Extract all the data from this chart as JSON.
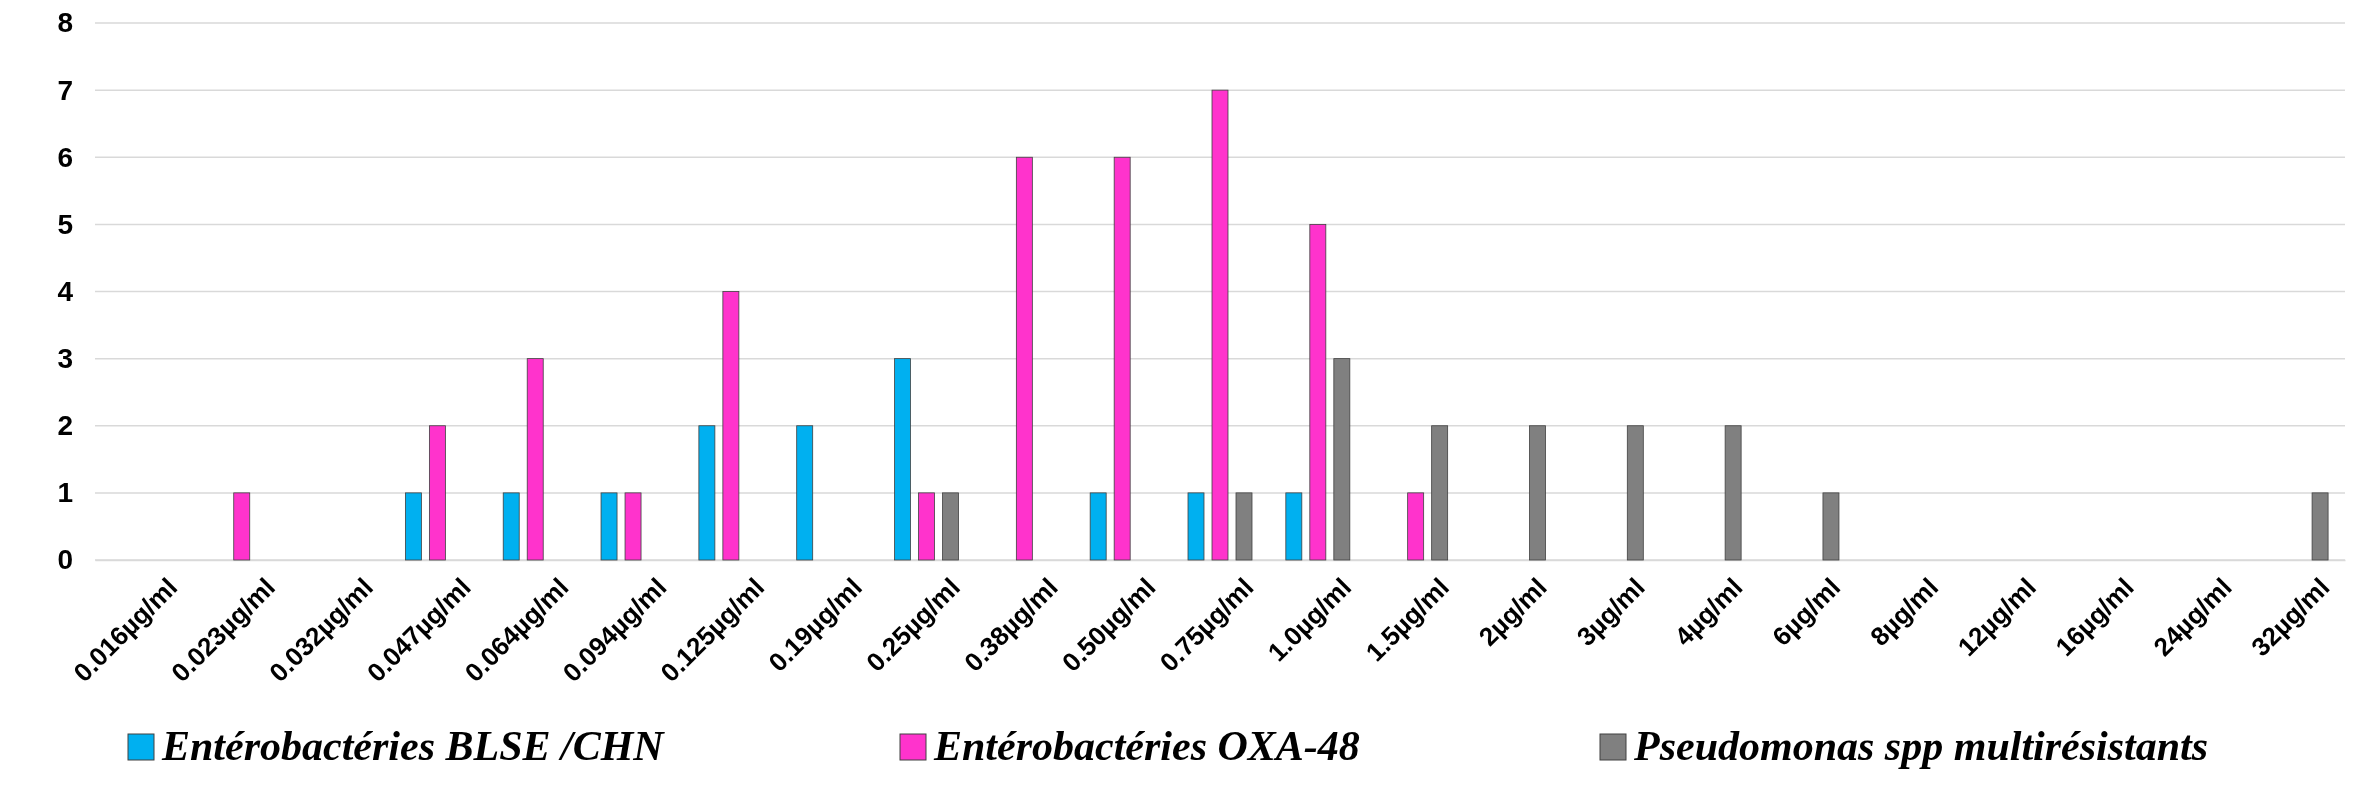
{
  "chart_data": {
    "type": "bar",
    "categories": [
      "0.016µg/ml",
      "0.023µg/ml",
      "0.032µg/ml",
      "0.047µg/ml",
      "0.064µg/ml",
      "0.094µg/ml",
      "0.125µg/ml",
      "0.19µg/ml",
      "0.25µg/ml",
      "0.38µg/ml",
      "0.50µg/ml",
      "0.75µg/ml",
      "1.0µg/ml",
      "1.5µg/ml",
      "2µg/ml",
      "3µg/ml",
      "4µg/ml",
      "6µg/ml",
      "8µg/ml",
      "12µg/ml",
      "16µg/ml",
      "24µg/ml",
      "32µg/ml"
    ],
    "series": [
      {
        "name": "Entérobactéries BLSE /CHN",
        "color": "#00b0f0",
        "values": [
          0,
          0,
          0,
          1,
          1,
          1,
          2,
          2,
          3,
          0,
          1,
          1,
          1,
          0,
          0,
          0,
          0,
          0,
          0,
          0,
          0,
          0,
          0
        ]
      },
      {
        "name": "Entérobactéries OXA-48",
        "color": "#ff33cc",
        "values": [
          0,
          1,
          0,
          2,
          3,
          1,
          4,
          0,
          1,
          6,
          6,
          7,
          5,
          1,
          0,
          0,
          0,
          0,
          0,
          0,
          0,
          0,
          0
        ]
      },
      {
        "name": "Pseudomonas spp multirésistants",
        "color": "#808080",
        "values": [
          0,
          0,
          0,
          0,
          0,
          0,
          0,
          0,
          1,
          0,
          0,
          1,
          3,
          2,
          2,
          2,
          2,
          1,
          0,
          0,
          0,
          0,
          1
        ]
      }
    ],
    "ylim": [
      0,
      8
    ],
    "yticks": [
      0,
      1,
      2,
      3,
      4,
      5,
      6,
      7,
      8
    ],
    "grid": "y",
    "legend": "bottom"
  }
}
